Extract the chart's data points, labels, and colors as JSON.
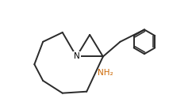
{
  "bg_color": "#ffffff",
  "line_color": "#2a2a2a",
  "N_color": "#000000",
  "NH2_color": "#cc6600",
  "line_width": 1.4,
  "figsize": [
    2.42,
    1.39
  ],
  "dpi": 100,
  "N_label": "N",
  "NH2_label": "NH₂",
  "N_fontsize": 7.5,
  "NH2_fontsize": 7.5,
  "xlim": [
    0.0,
    10.5
  ],
  "ylim": [
    0.2,
    7.2
  ]
}
